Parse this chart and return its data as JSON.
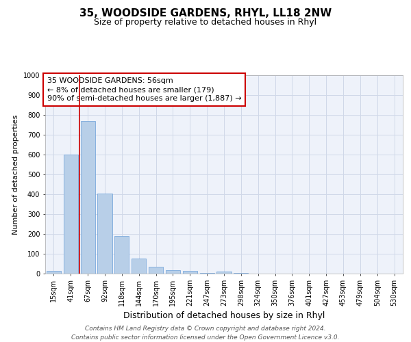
{
  "title": "35, WOODSIDE GARDENS, RHYL, LL18 2NW",
  "subtitle": "Size of property relative to detached houses in Rhyl",
  "xlabel": "Distribution of detached houses by size in Rhyl",
  "ylabel": "Number of detached properties",
  "categories": [
    "15sqm",
    "41sqm",
    "67sqm",
    "92sqm",
    "118sqm",
    "144sqm",
    "170sqm",
    "195sqm",
    "221sqm",
    "247sqm",
    "273sqm",
    "298sqm",
    "324sqm",
    "350sqm",
    "376sqm",
    "401sqm",
    "427sqm",
    "453sqm",
    "479sqm",
    "504sqm",
    "530sqm"
  ],
  "values": [
    15,
    600,
    770,
    405,
    190,
    75,
    35,
    18,
    15,
    5,
    12,
    5,
    0,
    0,
    0,
    0,
    0,
    0,
    0,
    0,
    0
  ],
  "bar_color": "#b8cfe8",
  "bar_edge_color": "#6a9fd8",
  "grid_color": "#d0d8e8",
  "background_color": "#eef2fa",
  "annotation_box_text": "35 WOODSIDE GARDENS: 56sqm\n← 8% of detached houses are smaller (179)\n90% of semi-detached houses are larger (1,887) →",
  "annotation_box_color": "#ffffff",
  "annotation_box_edge_color": "#cc0000",
  "ylim": [
    0,
    1000
  ],
  "yticks": [
    0,
    100,
    200,
    300,
    400,
    500,
    600,
    700,
    800,
    900,
    1000
  ],
  "footer_text": "Contains HM Land Registry data © Crown copyright and database right 2024.\nContains public sector information licensed under the Open Government Licence v3.0.",
  "title_fontsize": 11,
  "subtitle_fontsize": 9,
  "xlabel_fontsize": 9,
  "ylabel_fontsize": 8,
  "tick_fontsize": 7,
  "annotation_fontsize": 8,
  "footer_fontsize": 6.5
}
